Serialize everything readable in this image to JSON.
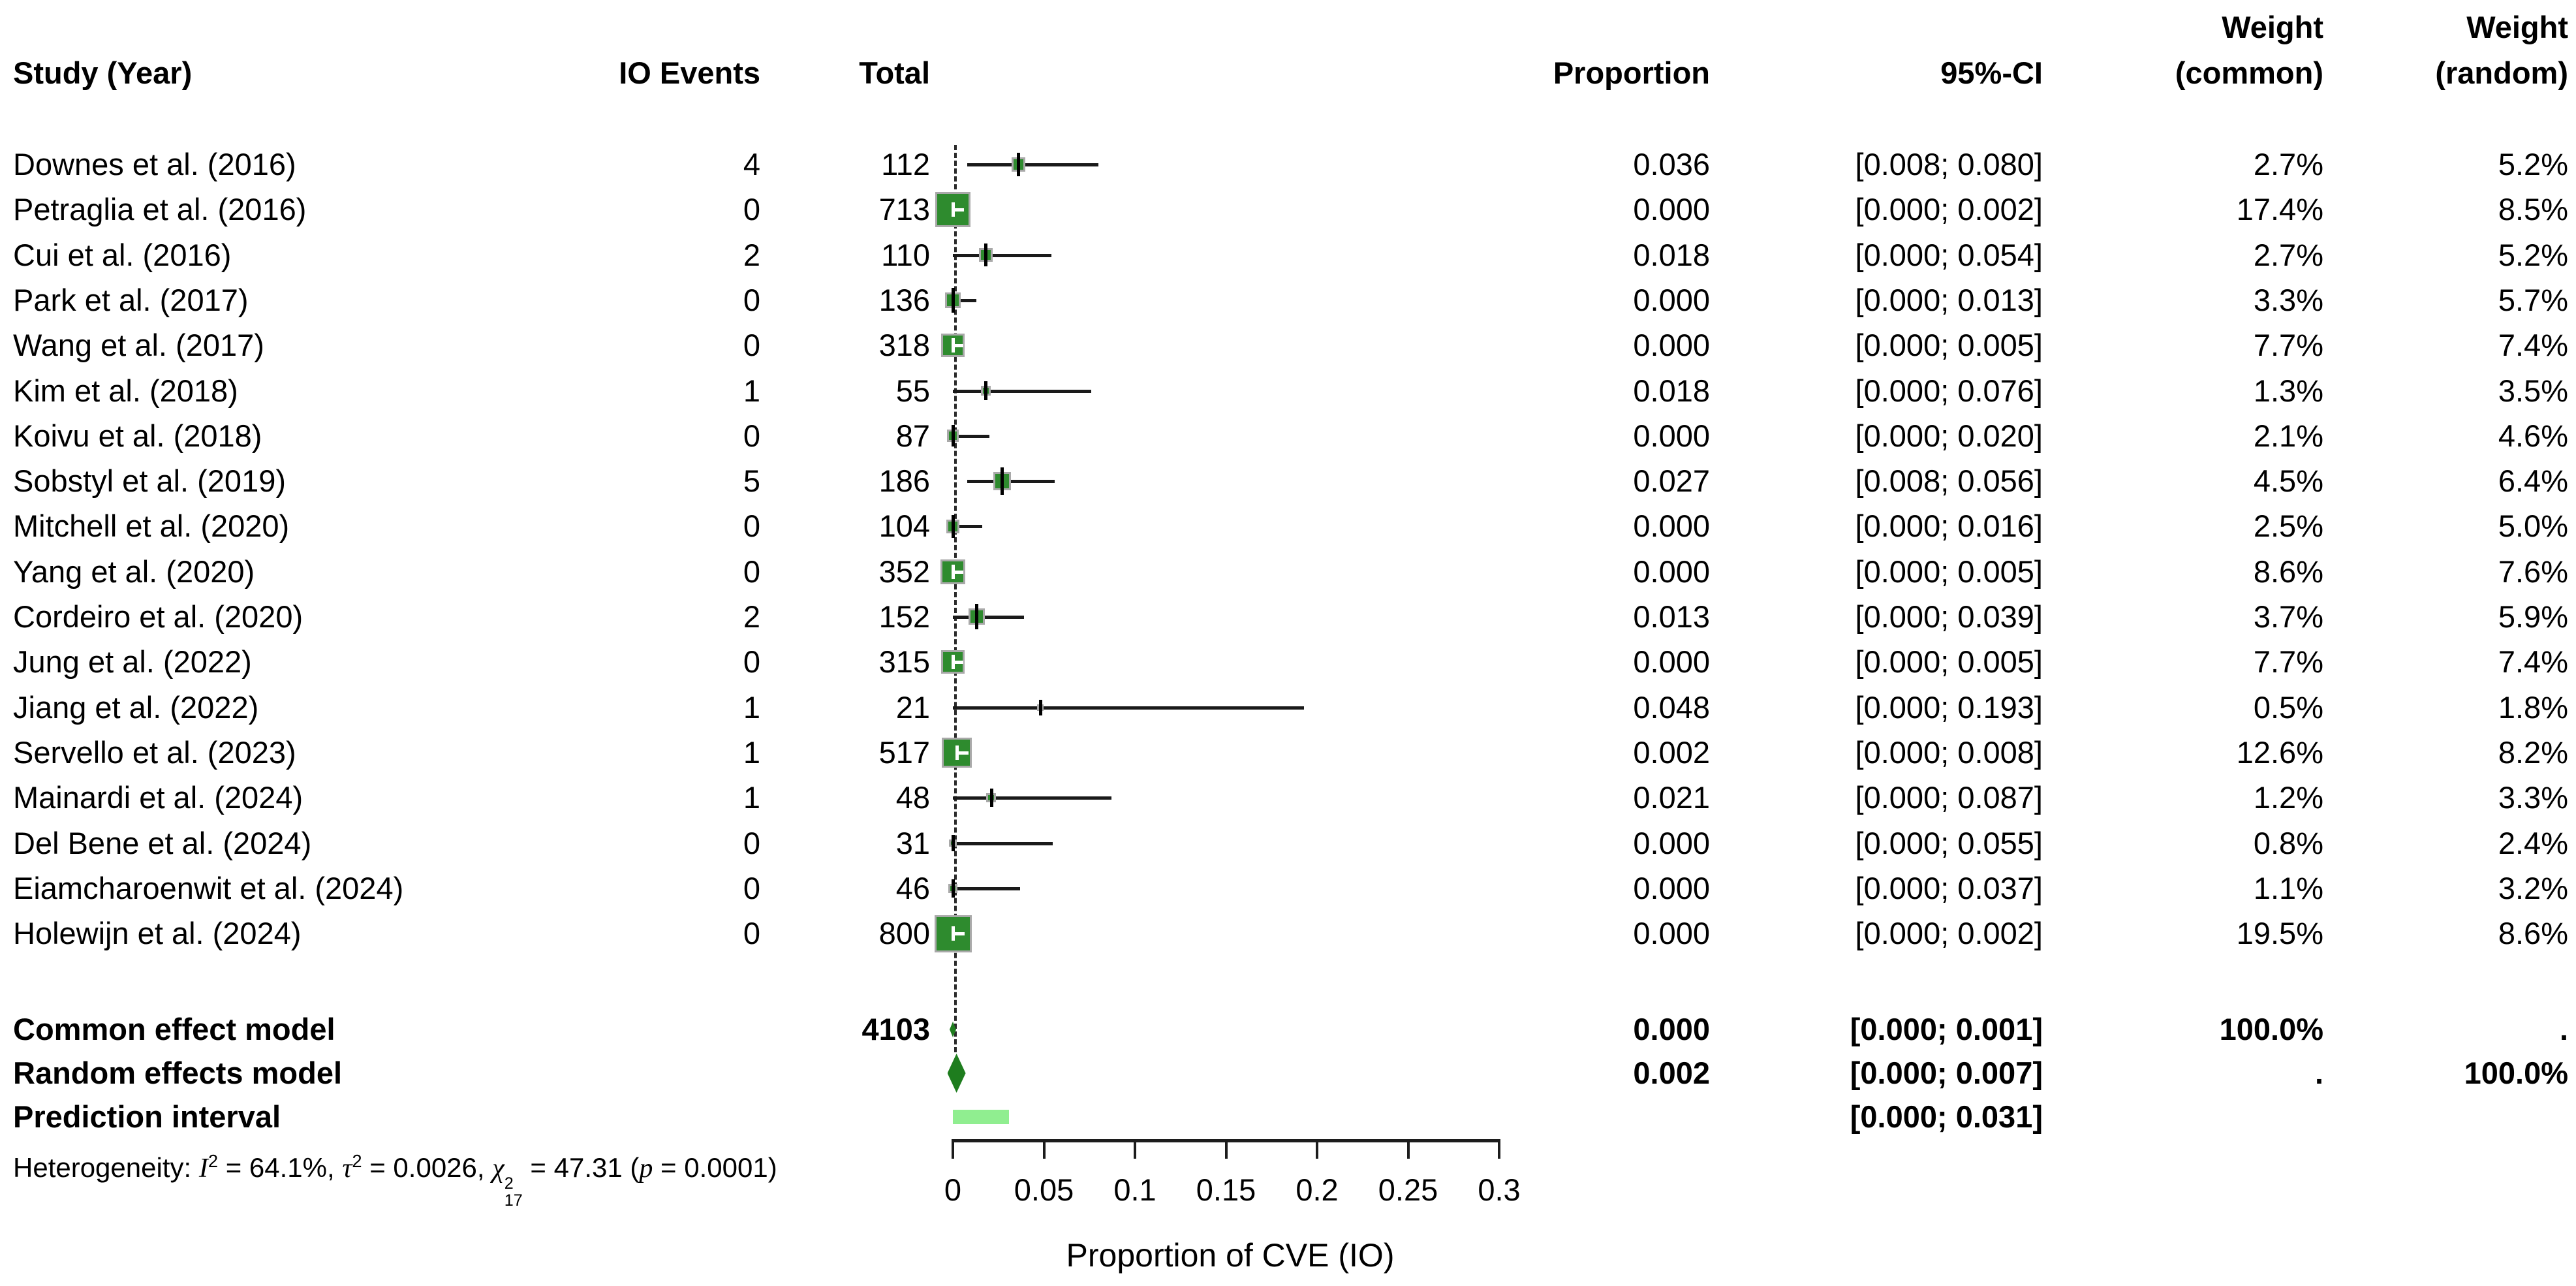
{
  "header": {
    "study": "Study (Year)",
    "events": "IO Events",
    "total": "Total",
    "proportion": "Proportion",
    "ci": "95%-CI",
    "weight_common_l1": "Weight",
    "weight_common_l2": "(common)",
    "weight_random_l1": "Weight",
    "weight_random_l2": "(random)"
  },
  "rows": [
    {
      "study": "Downes et al. (2016)",
      "events": "4",
      "total": "112",
      "proportion": "0.036",
      "ci": "[0.008; 0.080]",
      "w_common": "2.7%",
      "w_random": "5.2%",
      "est": 0.036,
      "lo": 0.008,
      "hi": 0.08,
      "weight": 2.7
    },
    {
      "study": "Petraglia et al. (2016)",
      "events": "0",
      "total": "713",
      "proportion": "0.000",
      "ci": "[0.000; 0.002]",
      "w_common": "17.4%",
      "w_random": "8.5%",
      "est": 0.0,
      "lo": 0.0,
      "hi": 0.002,
      "weight": 17.4
    },
    {
      "study": "Cui et al. (2016)",
      "events": "2",
      "total": "110",
      "proportion": "0.018",
      "ci": "[0.000; 0.054]",
      "w_common": "2.7%",
      "w_random": "5.2%",
      "est": 0.018,
      "lo": 0.0,
      "hi": 0.054,
      "weight": 2.7
    },
    {
      "study": "Park et al. (2017)",
      "events": "0",
      "total": "136",
      "proportion": "0.000",
      "ci": "[0.000; 0.013]",
      "w_common": "3.3%",
      "w_random": "5.7%",
      "est": 0.0,
      "lo": 0.0,
      "hi": 0.013,
      "weight": 3.3
    },
    {
      "study": "Wang et al. (2017)",
      "events": "0",
      "total": "318",
      "proportion": "0.000",
      "ci": "[0.000; 0.005]",
      "w_common": "7.7%",
      "w_random": "7.4%",
      "est": 0.0,
      "lo": 0.0,
      "hi": 0.005,
      "weight": 7.7
    },
    {
      "study": "Kim et al. (2018)",
      "events": "1",
      "total": "55",
      "proportion": "0.018",
      "ci": "[0.000; 0.076]",
      "w_common": "1.3%",
      "w_random": "3.5%",
      "est": 0.018,
      "lo": 0.0,
      "hi": 0.076,
      "weight": 1.3
    },
    {
      "study": "Koivu et al. (2018)",
      "events": "0",
      "total": "87",
      "proportion": "0.000",
      "ci": "[0.000; 0.020]",
      "w_common": "2.1%",
      "w_random": "4.6%",
      "est": 0.0,
      "lo": 0.0,
      "hi": 0.02,
      "weight": 2.1
    },
    {
      "study": "Sobstyl et al. (2019)",
      "events": "5",
      "total": "186",
      "proportion": "0.027",
      "ci": "[0.008; 0.056]",
      "w_common": "4.5%",
      "w_random": "6.4%",
      "est": 0.027,
      "lo": 0.008,
      "hi": 0.056,
      "weight": 4.5
    },
    {
      "study": "Mitchell et al. (2020)",
      "events": "0",
      "total": "104",
      "proportion": "0.000",
      "ci": "[0.000; 0.016]",
      "w_common": "2.5%",
      "w_random": "5.0%",
      "est": 0.0,
      "lo": 0.0,
      "hi": 0.016,
      "weight": 2.5
    },
    {
      "study": "Yang et al. (2020)",
      "events": "0",
      "total": "352",
      "proportion": "0.000",
      "ci": "[0.000; 0.005]",
      "w_common": "8.6%",
      "w_random": "7.6%",
      "est": 0.0,
      "lo": 0.0,
      "hi": 0.005,
      "weight": 8.6
    },
    {
      "study": "Cordeiro et al. (2020)",
      "events": "2",
      "total": "152",
      "proportion": "0.013",
      "ci": "[0.000; 0.039]",
      "w_common": "3.7%",
      "w_random": "5.9%",
      "est": 0.013,
      "lo": 0.0,
      "hi": 0.039,
      "weight": 3.7
    },
    {
      "study": "Jung et al. (2022)",
      "events": "0",
      "total": "315",
      "proportion": "0.000",
      "ci": "[0.000; 0.005]",
      "w_common": "7.7%",
      "w_random": "7.4%",
      "est": 0.0,
      "lo": 0.0,
      "hi": 0.005,
      "weight": 7.7
    },
    {
      "study": "Jiang et al. (2022)",
      "events": "1",
      "total": "21",
      "proportion": "0.048",
      "ci": "[0.000; 0.193]",
      "w_common": "0.5%",
      "w_random": "1.8%",
      "est": 0.048,
      "lo": 0.0,
      "hi": 0.193,
      "weight": 0.5
    },
    {
      "study": "Servello et al. (2023)",
      "events": "1",
      "total": "517",
      "proportion": "0.002",
      "ci": "[0.000; 0.008]",
      "w_common": "12.6%",
      "w_random": "8.2%",
      "est": 0.002,
      "lo": 0.0,
      "hi": 0.008,
      "weight": 12.6
    },
    {
      "study": "Mainardi et al. (2024)",
      "events": "1",
      "total": "48",
      "proportion": "0.021",
      "ci": "[0.000; 0.087]",
      "w_common": "1.2%",
      "w_random": "3.3%",
      "est": 0.021,
      "lo": 0.0,
      "hi": 0.087,
      "weight": 1.2
    },
    {
      "study": "Del Bene et al. (2024)",
      "events": "0",
      "total": "31",
      "proportion": "0.000",
      "ci": "[0.000; 0.055]",
      "w_common": "0.8%",
      "w_random": "2.4%",
      "est": 0.0,
      "lo": 0.0,
      "hi": 0.055,
      "weight": 0.8
    },
    {
      "study": "Eiamcharoenwit et al. (2024)",
      "events": "0",
      "total": "46",
      "proportion": "0.000",
      "ci": "[0.000; 0.037]",
      "w_common": "1.1%",
      "w_random": "3.2%",
      "est": 0.0,
      "lo": 0.0,
      "hi": 0.037,
      "weight": 1.1
    },
    {
      "study": "Holewijn et al. (2024)",
      "events": "0",
      "total": "800",
      "proportion": "0.000",
      "ci": "[0.000; 0.002]",
      "w_common": "19.5%",
      "w_random": "8.6%",
      "est": 0.0,
      "lo": 0.0,
      "hi": 0.002,
      "weight": 19.5
    }
  ],
  "summary": {
    "common": {
      "label": "Common effect model",
      "total": "4103",
      "proportion": "0.000",
      "ci": "[0.000; 0.001]",
      "w_common": "100.0%",
      "w_random": ".",
      "est": 0.0,
      "lo": 0.0,
      "hi": 0.001
    },
    "random": {
      "label": "Random effects model",
      "proportion": "0.002",
      "ci": "[0.000; 0.007]",
      "w_common": ".",
      "w_random": "100.0%",
      "est": 0.002,
      "lo": 0.0,
      "hi": 0.007
    },
    "prediction": {
      "label": "Prediction interval",
      "ci": "[0.000; 0.031]",
      "lo": 0.0,
      "hi": 0.031
    }
  },
  "heterogeneity": {
    "p1": "Heterogeneity: ",
    "i": "I",
    "i_sup": "2",
    "p2": " = 64.1%, ",
    "tau": "τ",
    "tau_sup": "2",
    "p3": " = 0.0026, ",
    "chi": "χ",
    "chi_sup": "2",
    "chi_sub": "17",
    "p4": " = 47.31 (",
    "p": "p",
    "p5": " = 0.0001)"
  },
  "axis": {
    "ticks": [
      "0",
      "0.05",
      "0.1",
      "0.15",
      "0.2",
      "0.25",
      "0.3"
    ],
    "values": [
      0,
      0.05,
      0.1,
      0.15,
      0.2,
      0.25,
      0.3
    ],
    "label": "Proportion of CVE (IO)"
  },
  "colors": {
    "square": "#2e8b2e",
    "square_border": "#a9a9a9",
    "diamond": "#1e7d1e",
    "prediction": "#90ee90",
    "ci_line": "#1a1a1a"
  },
  "chart_data": {
    "type": "scatter",
    "subtype": "forest-plot-meta-analysis",
    "title": "",
    "xlabel": "Proportion of CVE (IO)",
    "xlim": [
      0,
      0.3
    ],
    "x_ticks": [
      0,
      0.05,
      0.1,
      0.15,
      0.2,
      0.25,
      0.3
    ],
    "categories": [
      "Downes et al. (2016)",
      "Petraglia et al. (2016)",
      "Cui et al. (2016)",
      "Park et al. (2017)",
      "Wang et al. (2017)",
      "Kim et al. (2018)",
      "Koivu et al. (2018)",
      "Sobstyl et al. (2019)",
      "Mitchell et al. (2020)",
      "Yang et al. (2020)",
      "Cordeiro et al. (2020)",
      "Jung et al. (2022)",
      "Jiang et al. (2022)",
      "Servello et al. (2023)",
      "Mainardi et al. (2024)",
      "Del Bene et al. (2024)",
      "Eiamcharoenwit et al. (2024)",
      "Holewijn et al. (2024)"
    ],
    "series": [
      {
        "name": "IO Events",
        "values": [
          4,
          0,
          2,
          0,
          0,
          1,
          0,
          5,
          0,
          0,
          2,
          0,
          1,
          1,
          1,
          0,
          0,
          0
        ]
      },
      {
        "name": "Total",
        "values": [
          112,
          713,
          110,
          136,
          318,
          55,
          87,
          186,
          104,
          352,
          152,
          315,
          21,
          517,
          48,
          31,
          46,
          800
        ]
      },
      {
        "name": "Proportion",
        "values": [
          0.036,
          0.0,
          0.018,
          0.0,
          0.0,
          0.018,
          0.0,
          0.027,
          0.0,
          0.0,
          0.013,
          0.0,
          0.048,
          0.002,
          0.021,
          0.0,
          0.0,
          0.0
        ]
      },
      {
        "name": "CI lower",
        "values": [
          0.008,
          0.0,
          0.0,
          0.0,
          0.0,
          0.0,
          0.0,
          0.008,
          0.0,
          0.0,
          0.0,
          0.0,
          0.0,
          0.0,
          0.0,
          0.0,
          0.0,
          0.0
        ]
      },
      {
        "name": "CI upper",
        "values": [
          0.08,
          0.002,
          0.054,
          0.013,
          0.005,
          0.076,
          0.02,
          0.056,
          0.016,
          0.005,
          0.039,
          0.005,
          0.193,
          0.008,
          0.087,
          0.055,
          0.037,
          0.002
        ]
      },
      {
        "name": "Weight (common) %",
        "values": [
          2.7,
          17.4,
          2.7,
          3.3,
          7.7,
          1.3,
          2.1,
          4.5,
          2.5,
          8.6,
          3.7,
          7.7,
          0.5,
          12.6,
          1.2,
          0.8,
          1.1,
          19.5
        ]
      },
      {
        "name": "Weight (random) %",
        "values": [
          5.2,
          8.5,
          5.2,
          5.7,
          7.4,
          3.5,
          4.6,
          6.4,
          5.0,
          7.6,
          5.9,
          7.4,
          1.8,
          8.2,
          3.3,
          2.4,
          3.2,
          8.6
        ]
      }
    ],
    "summaries": [
      {
        "name": "Common effect model",
        "total": 4103,
        "estimate": 0.0,
        "ci": [
          0.0,
          0.001
        ],
        "weight_common": "100.0%"
      },
      {
        "name": "Random effects model",
        "estimate": 0.002,
        "ci": [
          0.0,
          0.007
        ],
        "weight_random": "100.0%"
      },
      {
        "name": "Prediction interval",
        "ci": [
          0.0,
          0.031
        ]
      }
    ],
    "heterogeneity_text": "Heterogeneity: I2 = 64.1%, tau2 = 0.0026, chi2_17 = 47.31 (p = 0.0001)",
    "legend_position": "none",
    "grid": false
  }
}
